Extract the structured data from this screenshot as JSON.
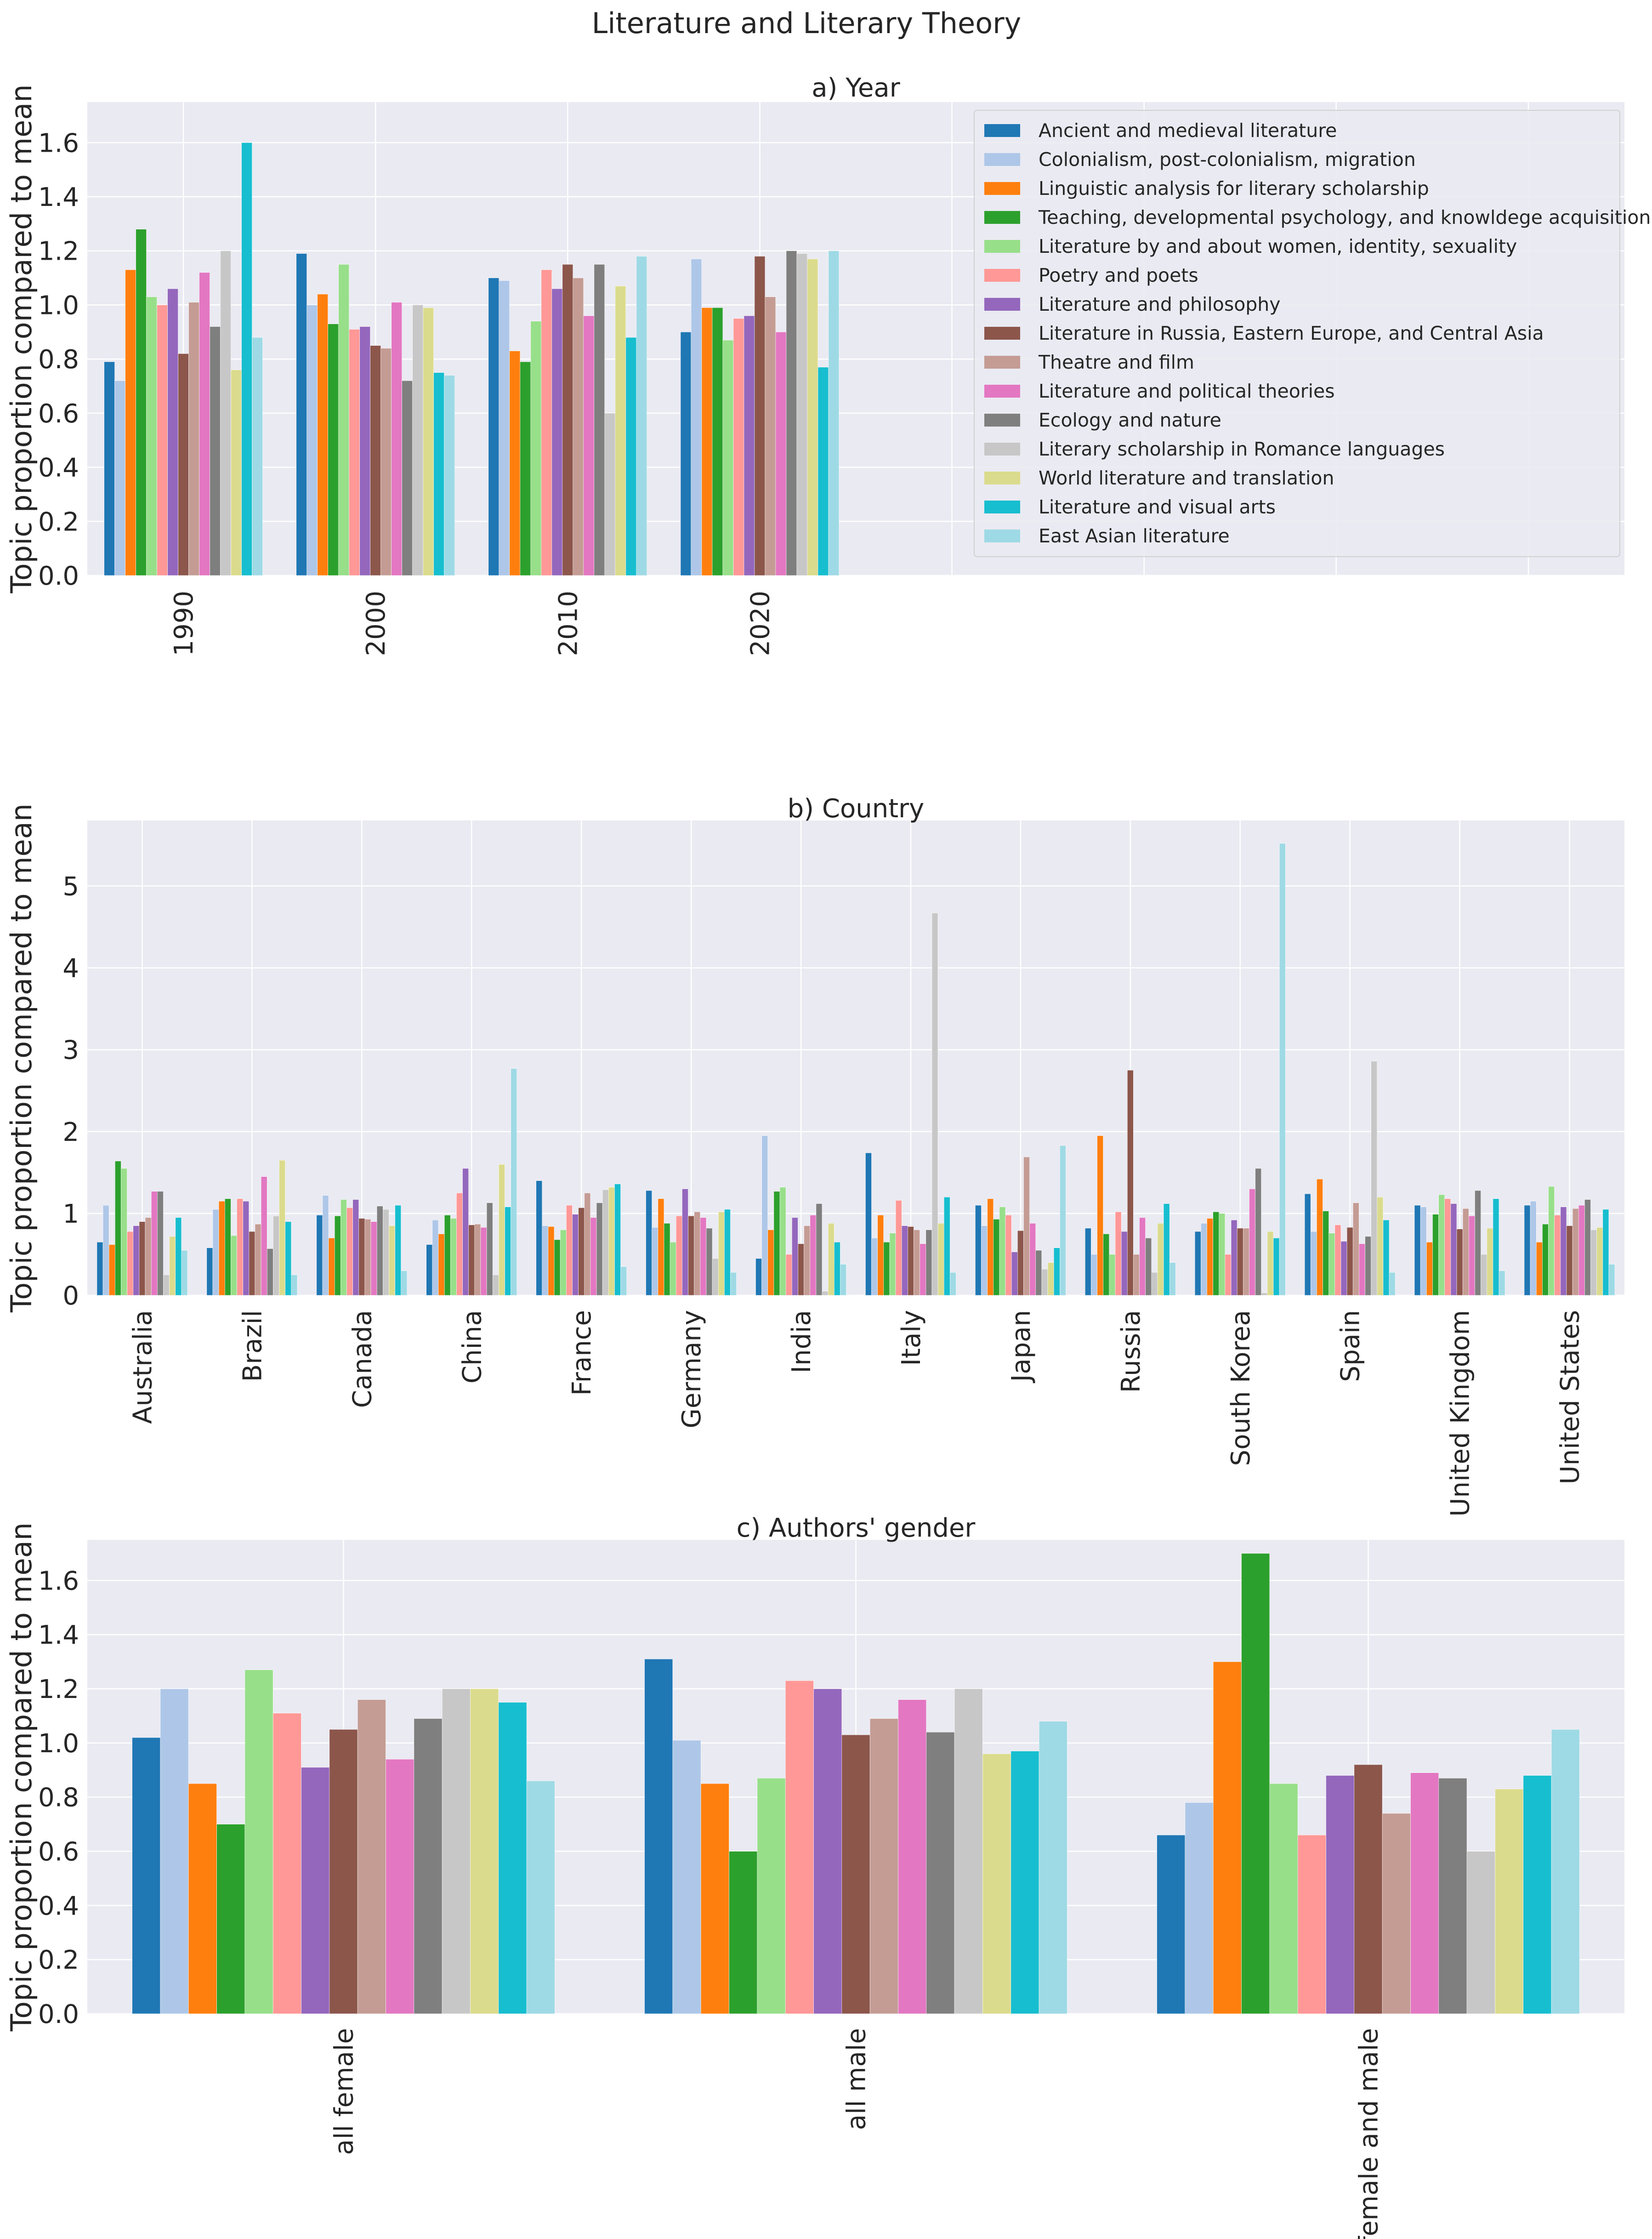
{
  "figure": {
    "title": "Literature and Literary Theory"
  },
  "colors": [
    "#1f77b4",
    "#aec7e8",
    "#ff7f0e",
    "#2ca02c",
    "#98df8a",
    "#ff9896",
    "#9467bd",
    "#8c564b",
    "#c49c94",
    "#e377c2",
    "#7f7f7f",
    "#c7c7c7",
    "#dbdb8d",
    "#17becf",
    "#9edae5"
  ],
  "chart_data": [
    {
      "type": "bar",
      "title": "a) Year",
      "xlabel": "",
      "ylabel": "Topic proportion compared to mean",
      "ylim": [
        0,
        1.75
      ],
      "yticks": [
        0.0,
        0.2,
        0.4,
        0.6,
        0.8,
        1.0,
        1.2,
        1.4,
        1.6
      ],
      "xlim": [
        -0.5,
        7.5
      ],
      "grid": true,
      "legend": "top-right",
      "categories": [
        "1990",
        "2000",
        "2010",
        "2020"
      ],
      "series": [
        {
          "name": "Ancient and medieval literature",
          "values": [
            0.79,
            1.19,
            1.1,
            0.9
          ]
        },
        {
          "name": "Colonialism, post-colonialism, migration",
          "values": [
            0.72,
            1.0,
            1.09,
            1.17
          ]
        },
        {
          "name": "Linguistic analysis for literary scholarship",
          "values": [
            1.13,
            1.04,
            0.83,
            0.99
          ]
        },
        {
          "name": "Teaching, developmental psychology, and knowldege acquisition",
          "values": [
            1.28,
            0.93,
            0.79,
            0.99
          ]
        },
        {
          "name": "Literature by and about women, identity, sexuality",
          "values": [
            1.03,
            1.15,
            0.94,
            0.87
          ]
        },
        {
          "name": "Poetry and poets",
          "values": [
            1.0,
            0.91,
            1.13,
            0.95
          ]
        },
        {
          "name": "Literature and philosophy",
          "values": [
            1.06,
            0.92,
            1.06,
            0.96
          ]
        },
        {
          "name": "Literature in Russia, Eastern Europe, and Central Asia",
          "values": [
            0.82,
            0.85,
            1.15,
            1.18
          ]
        },
        {
          "name": "Theatre and film",
          "values": [
            1.01,
            0.84,
            1.1,
            1.03
          ]
        },
        {
          "name": "Literature and political theories",
          "values": [
            1.12,
            1.01,
            0.96,
            0.9
          ]
        },
        {
          "name": "Ecology and nature",
          "values": [
            0.92,
            0.72,
            1.15,
            1.2
          ]
        },
        {
          "name": "Literary scholarship in Romance languages",
          "values": [
            1.2,
            1.0,
            0.6,
            1.19
          ]
        },
        {
          "name": "World literature and translation",
          "values": [
            0.76,
            0.99,
            1.07,
            1.17
          ]
        },
        {
          "name": "Literature and visual arts",
          "values": [
            1.6,
            0.75,
            0.88,
            0.77
          ]
        },
        {
          "name": "East Asian literature",
          "values": [
            0.88,
            0.74,
            1.18,
            1.2
          ]
        }
      ]
    },
    {
      "type": "bar",
      "title": "b) Country",
      "xlabel": "",
      "ylabel": "Topic proportion compared to mean",
      "ylim": [
        0,
        5.8
      ],
      "yticks": [
        0,
        1,
        2,
        3,
        4,
        5
      ],
      "xlim": [
        -0.5,
        13.5
      ],
      "grid": true,
      "categories": [
        "Australia",
        "Brazil",
        "Canada",
        "China",
        "France",
        "Germany",
        "India",
        "Italy",
        "Japan",
        "Russia",
        "South Korea",
        "Spain",
        "United Kingdom",
        "United States"
      ],
      "series": [
        {
          "name": "Ancient and medieval literature",
          "values": [
            0.65,
            0.58,
            0.98,
            0.62,
            1.4,
            1.28,
            0.45,
            1.74,
            1.1,
            0.82,
            0.78,
            1.24,
            1.1,
            1.1
          ]
        },
        {
          "name": "Colonialism, post-colonialism, migration",
          "values": [
            1.1,
            1.05,
            1.22,
            0.92,
            0.85,
            0.83,
            1.95,
            0.7,
            0.85,
            0.5,
            0.88,
            0.78,
            1.08,
            1.15
          ]
        },
        {
          "name": "Linguistic analysis for literary scholarship",
          "values": [
            0.62,
            1.15,
            0.7,
            0.75,
            0.84,
            1.18,
            0.8,
            0.98,
            1.18,
            1.95,
            0.94,
            1.42,
            0.65,
            0.65
          ]
        },
        {
          "name": "Teaching, developmental psychology, and knowldege acquisition",
          "values": [
            1.64,
            1.18,
            0.97,
            0.98,
            0.68,
            0.88,
            1.27,
            0.65,
            0.93,
            0.75,
            1.02,
            1.03,
            0.99,
            0.87
          ]
        },
        {
          "name": "Literature by and about women, identity, sexuality",
          "values": [
            1.55,
            0.73,
            1.17,
            0.94,
            0.8,
            0.65,
            1.32,
            0.76,
            1.08,
            0.5,
            1.0,
            0.76,
            1.23,
            1.33
          ]
        },
        {
          "name": "Poetry and poets",
          "values": [
            0.78,
            1.18,
            1.07,
            1.25,
            1.1,
            0.97,
            0.5,
            1.16,
            0.98,
            1.02,
            0.5,
            0.86,
            1.18,
            0.98
          ]
        },
        {
          "name": "Literature and philosophy",
          "values": [
            0.85,
            1.15,
            1.17,
            1.55,
            0.99,
            1.3,
            0.95,
            0.85,
            0.53,
            0.78,
            0.92,
            0.66,
            1.12,
            1.08
          ]
        },
        {
          "name": "Literature in Russia, Eastern Europe, and Central Asia",
          "values": [
            0.9,
            0.78,
            0.94,
            0.86,
            1.07,
            0.97,
            0.63,
            0.84,
            0.79,
            2.75,
            0.82,
            0.83,
            0.81,
            0.85
          ]
        },
        {
          "name": "Theatre and film",
          "values": [
            0.95,
            0.87,
            0.93,
            0.87,
            1.25,
            1.02,
            0.85,
            0.8,
            1.69,
            0.5,
            0.82,
            1.13,
            1.06,
            1.06
          ]
        },
        {
          "name": "Literature and political theories",
          "values": [
            1.27,
            1.45,
            0.9,
            0.83,
            0.95,
            0.95,
            0.98,
            0.63,
            0.88,
            0.95,
            1.3,
            0.63,
            0.97,
            1.1
          ]
        },
        {
          "name": "Ecology and nature",
          "values": [
            1.27,
            0.57,
            1.09,
            1.13,
            1.13,
            0.82,
            1.12,
            0.8,
            0.55,
            0.7,
            1.55,
            0.72,
            1.28,
            1.17
          ]
        },
        {
          "name": "Literary scholarship in Romance languages",
          "values": [
            0.25,
            0.97,
            1.05,
            0.25,
            1.29,
            0.45,
            0.05,
            4.67,
            0.32,
            0.28,
            0.03,
            2.86,
            0.5,
            0.8
          ]
        },
        {
          "name": "World literature and translation",
          "values": [
            0.72,
            1.65,
            0.85,
            1.6,
            1.32,
            1.02,
            0.88,
            0.88,
            0.4,
            0.88,
            0.78,
            1.2,
            0.82,
            0.83
          ]
        },
        {
          "name": "Literature and visual arts",
          "values": [
            0.95,
            0.9,
            1.1,
            1.08,
            1.36,
            1.05,
            0.65,
            1.2,
            0.58,
            1.12,
            0.7,
            0.92,
            1.18,
            1.05
          ]
        },
        {
          "name": "East Asian literature",
          "values": [
            0.55,
            0.25,
            0.3,
            2.77,
            0.35,
            0.28,
            0.38,
            0.28,
            1.83,
            0.4,
            5.52,
            0.28,
            0.3,
            0.38
          ]
        }
      ]
    },
    {
      "type": "bar",
      "title": "c) Authors' gender",
      "xlabel": "",
      "ylabel": "Topic proportion compared to mean",
      "ylim": [
        0,
        1.75
      ],
      "yticks": [
        0.0,
        0.2,
        0.4,
        0.6,
        0.8,
        1.0,
        1.2,
        1.4,
        1.6
      ],
      "xlim": [
        -0.5,
        2.5
      ],
      "grid": true,
      "categories": [
        "all female",
        "all male",
        "female and male"
      ],
      "series": [
        {
          "name": "Ancient and medieval literature",
          "values": [
            1.02,
            1.31,
            0.66
          ]
        },
        {
          "name": "Colonialism, post-colonialism, migration",
          "values": [
            1.2,
            1.01,
            0.78
          ]
        },
        {
          "name": "Linguistic analysis for literary scholarship",
          "values": [
            0.85,
            0.85,
            1.3
          ]
        },
        {
          "name": "Teaching, developmental psychology, and knowldege acquisition",
          "values": [
            0.7,
            0.6,
            1.7
          ]
        },
        {
          "name": "Literature by and about women, identity, sexuality",
          "values": [
            1.27,
            0.87,
            0.85
          ]
        },
        {
          "name": "Poetry and poets",
          "values": [
            1.11,
            1.23,
            0.66
          ]
        },
        {
          "name": "Literature and philosophy",
          "values": [
            0.91,
            1.2,
            0.88
          ]
        },
        {
          "name": "Literature in Russia, Eastern Europe, and Central Asia",
          "values": [
            1.05,
            1.03,
            0.92
          ]
        },
        {
          "name": "Theatre and film",
          "values": [
            1.16,
            1.09,
            0.74
          ]
        },
        {
          "name": "Literature and political theories",
          "values": [
            0.94,
            1.16,
            0.89
          ]
        },
        {
          "name": "Ecology and nature",
          "values": [
            1.09,
            1.04,
            0.87
          ]
        },
        {
          "name": "Literary scholarship in Romance languages",
          "values": [
            1.2,
            1.2,
            0.6
          ]
        },
        {
          "name": "World literature and translation",
          "values": [
            1.2,
            0.96,
            0.83
          ]
        },
        {
          "name": "Literature and visual arts",
          "values": [
            1.15,
            0.97,
            0.88
          ]
        },
        {
          "name": "East Asian literature",
          "values": [
            0.86,
            1.08,
            1.05
          ]
        }
      ]
    }
  ]
}
